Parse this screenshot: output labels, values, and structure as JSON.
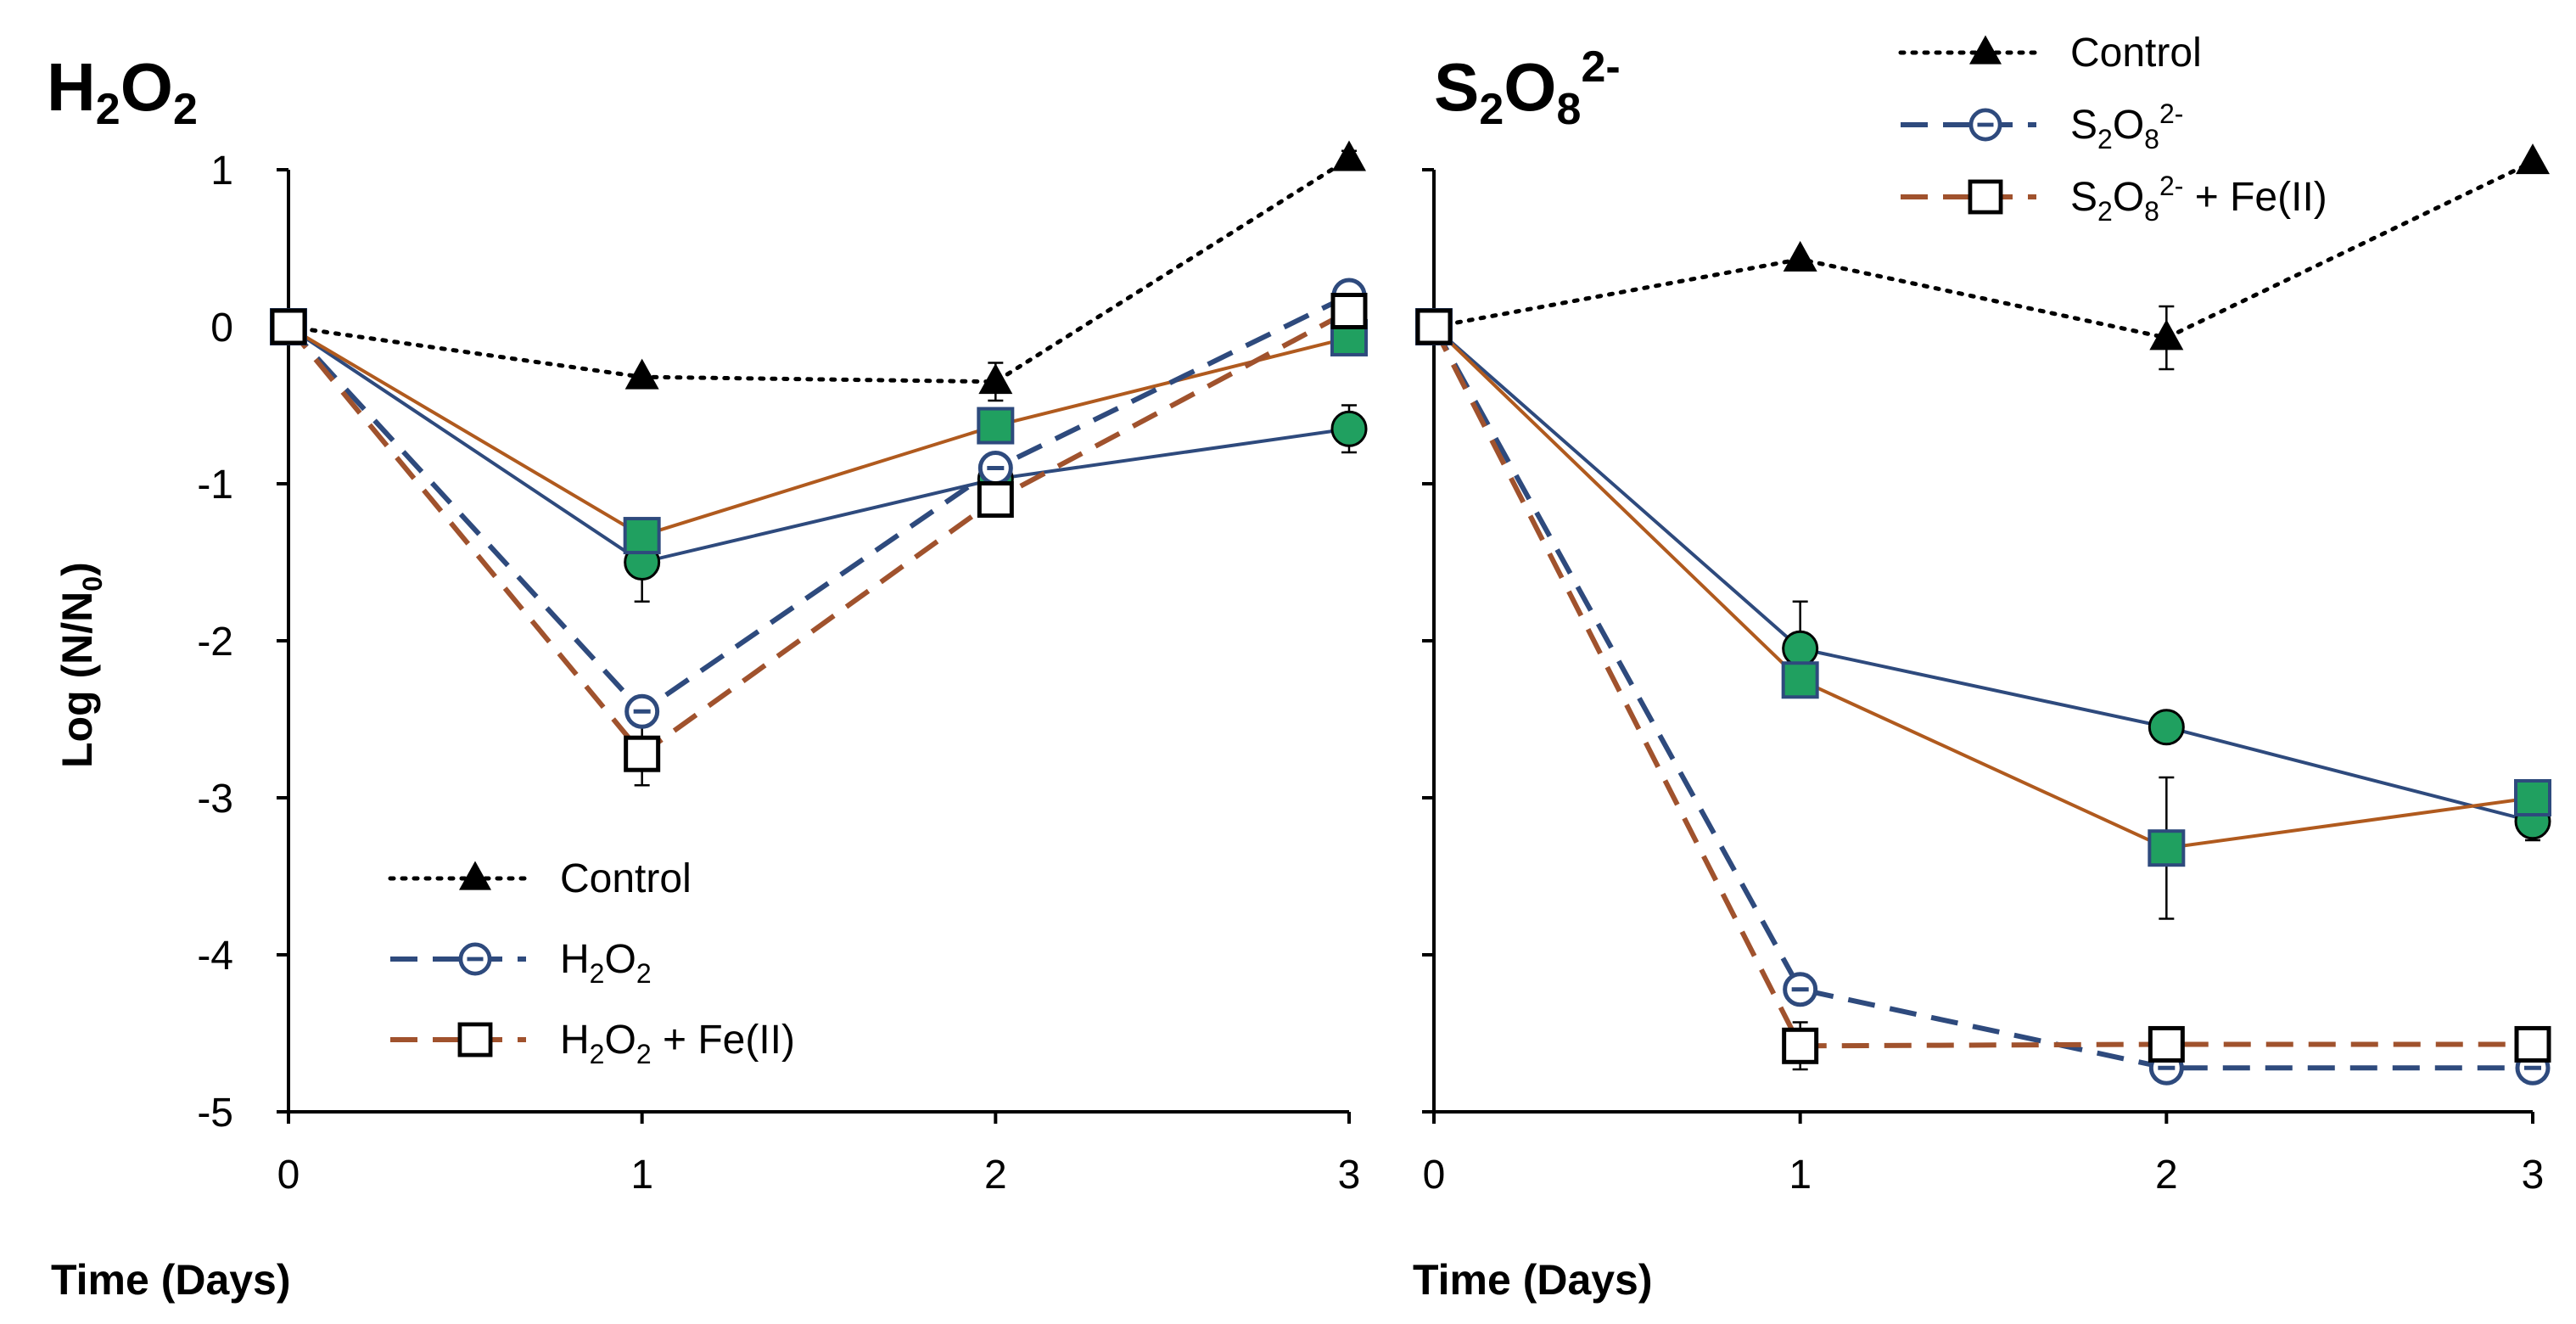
{
  "chart_data": [
    {
      "type": "line",
      "panel": "left",
      "title": {
        "main": "H",
        "sub1": "2",
        "main2": "O",
        "sub2": "2"
      },
      "xlabel": "Time (Days)",
      "ylabel": "Log (N/N0)",
      "ylabel_parts": {
        "main": "Log (N/N",
        "sub": "0",
        "tail": ")"
      },
      "x": [
        0,
        1,
        2,
        3
      ],
      "xlim": [
        0,
        3
      ],
      "ylim": [
        -5,
        1
      ],
      "xticks": [
        0,
        1,
        2,
        3
      ],
      "yticks": [
        1,
        0,
        -1,
        -2,
        -3,
        -4,
        -5
      ],
      "legend_position": "bottom-left",
      "series": [
        {
          "name": "Control",
          "values": [
            0,
            -0.32,
            -0.35,
            1.07
          ],
          "color": "#000000",
          "style": "dotted",
          "marker": "triangle-filled",
          "in_legend": true,
          "errors": [
            0,
            0.03,
            0.12,
            0.05
          ]
        },
        {
          "name": "H2O2",
          "label_parts": {
            "a": "H",
            "s1": "2",
            "b": "O",
            "s2": "2",
            "c": ""
          },
          "values": [
            0,
            -2.45,
            -0.9,
            0.2
          ],
          "color": "#2e4a7d",
          "style": "dashed",
          "marker": "circle-open-bar",
          "in_legend": true,
          "errors": [
            0,
            0.05,
            0.05,
            0.05
          ]
        },
        {
          "name": "H2O2 + Fe(II)",
          "label_parts": {
            "a": "H",
            "s1": "2",
            "b": "O",
            "s2": "2",
            "c": " + Fe(II)"
          },
          "values": [
            0,
            -2.72,
            -1.1,
            0.1
          ],
          "color": "#a0522d",
          "style": "dashed",
          "marker": "square-open",
          "in_legend": true,
          "errors": [
            0,
            0.2,
            0.05,
            0.05
          ]
        },
        {
          "name": "blue-circle",
          "values": [
            0,
            -1.5,
            -0.97,
            -0.65
          ],
          "color": "#2e4a7d",
          "style": "solid",
          "marker": "circle-green",
          "in_legend": false,
          "errors": [
            0,
            0.25,
            0.05,
            0.15
          ]
        },
        {
          "name": "brown-square",
          "values": [
            0,
            -1.33,
            -0.63,
            -0.07
          ],
          "color": "#b05a1e",
          "style": "solid",
          "marker": "square-green",
          "in_legend": false,
          "errors": [
            0,
            0.05,
            0.05,
            0.05
          ]
        }
      ]
    },
    {
      "type": "line",
      "panel": "right",
      "title": {
        "main": "S",
        "sub1": "2",
        "main2": "O",
        "sub2": "8",
        "sup": "2-"
      },
      "xlabel": "Time (Days)",
      "x": [
        0,
        1,
        2,
        3
      ],
      "xlim": [
        0,
        3
      ],
      "ylim": [
        -5,
        1
      ],
      "xticks": [
        0,
        1,
        2,
        3
      ],
      "legend_position": "top-right",
      "series": [
        {
          "name": "Control",
          "values": [
            0,
            0.43,
            -0.07,
            1.05
          ],
          "color": "#000000",
          "style": "dotted",
          "marker": "triangle-filled",
          "in_legend": true,
          "errors": [
            0,
            0.03,
            0.2,
            0.03
          ]
        },
        {
          "name": "S2O82-",
          "label_parts": {
            "a": "S",
            "s1": "2",
            "b": "O",
            "s2": "8",
            "sup": "2-",
            "c": ""
          },
          "values": [
            0,
            -4.22,
            -4.72,
            -4.72
          ],
          "color": "#2e4a7d",
          "style": "dashed",
          "marker": "circle-open-bar",
          "in_legend": true,
          "errors": [
            0,
            0.05,
            0.05,
            0.05
          ]
        },
        {
          "name": "S2O82- + Fe(II)",
          "label_parts": {
            "a": "S",
            "s1": "2",
            "b": "O",
            "s2": "8",
            "sup": "2-",
            "c": " + Fe(II)"
          },
          "values": [
            0,
            -4.58,
            -4.57,
            -4.57
          ],
          "color": "#a0522d",
          "style": "dashed",
          "marker": "square-open",
          "in_legend": true,
          "errors": [
            0,
            0.15,
            0.05,
            0.05
          ]
        },
        {
          "name": "blue-circle",
          "values": [
            0,
            -2.05,
            -2.55,
            -3.15
          ],
          "color": "#2e4a7d",
          "style": "solid",
          "marker": "circle-green",
          "in_legend": false,
          "errors": [
            0,
            0.3,
            0.05,
            0.12
          ]
        },
        {
          "name": "brown-square",
          "values": [
            0,
            -2.25,
            -3.32,
            -3.0
          ],
          "color": "#b05a1e",
          "style": "solid",
          "marker": "square-green",
          "in_legend": false,
          "errors": [
            0,
            0.05,
            0.45,
            0.05
          ]
        }
      ]
    }
  ],
  "colors": {
    "green_fill": "#20a060",
    "black": "#000000"
  }
}
